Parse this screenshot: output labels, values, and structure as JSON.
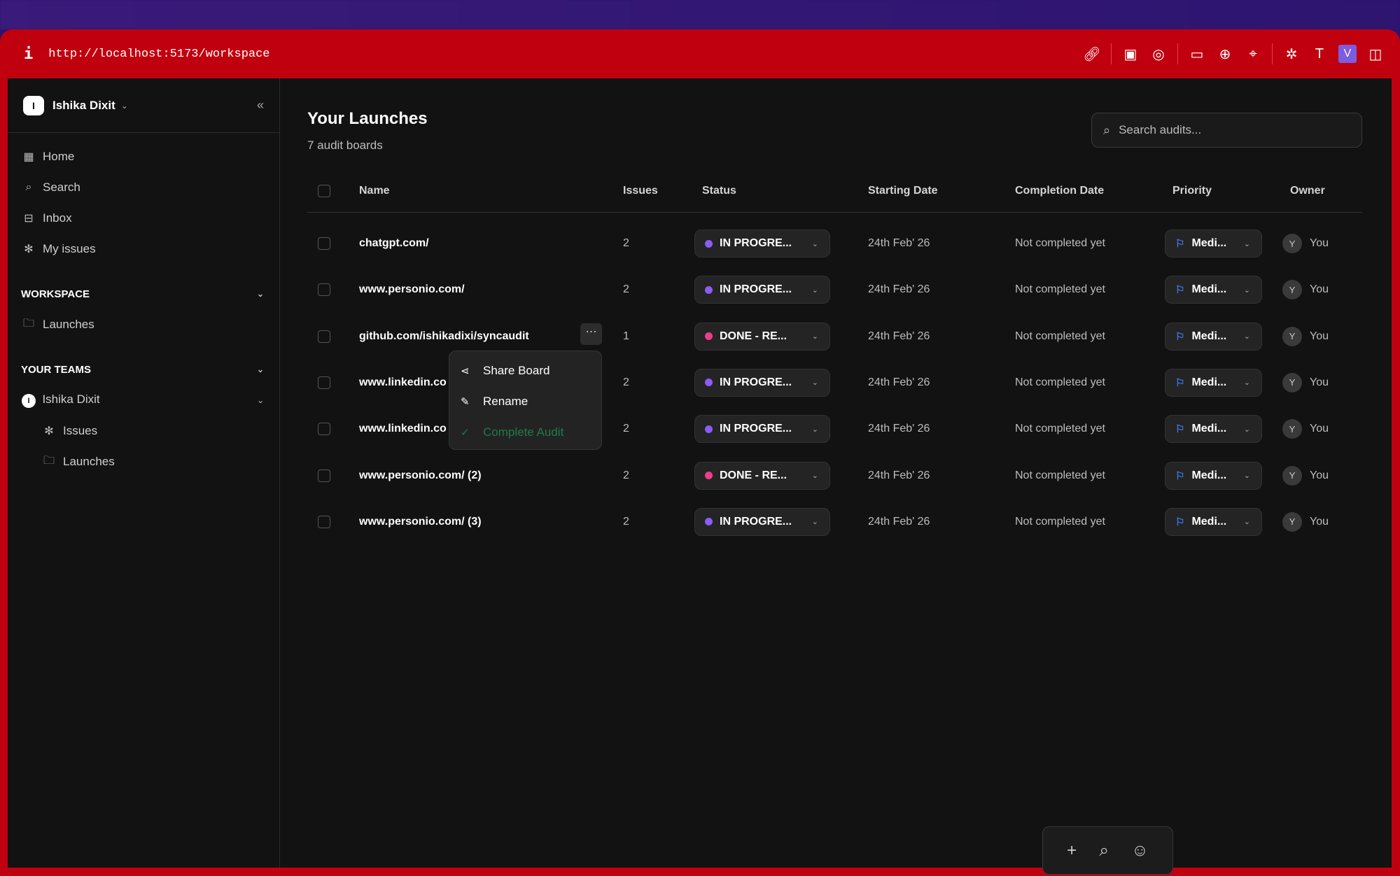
{
  "browser": {
    "url": "http://localhost:5173/workspace",
    "info_icon": "i"
  },
  "sidebar": {
    "workspace_name": "Ishika Dixit",
    "workspace_initial": "I",
    "nav": [
      {
        "label": "Home",
        "icon": "grid-icon"
      },
      {
        "label": "Search",
        "icon": "search-icon"
      },
      {
        "label": "Inbox",
        "icon": "inbox-icon"
      },
      {
        "label": "My issues",
        "icon": "bug-icon"
      }
    ],
    "workspace_section": "WORKSPACE",
    "workspace_items": [
      {
        "label": "Launches"
      }
    ],
    "teams_section": "YOUR TEAMS",
    "team": {
      "name": "Ishika Dixit",
      "initial": "I",
      "items": [
        {
          "label": "Issues"
        },
        {
          "label": "Launches"
        }
      ]
    }
  },
  "main": {
    "title": "Your Launches",
    "subtitle": "7 audit boards",
    "search_placeholder": "Search audits...",
    "columns": [
      "Name",
      "Issues",
      "Status",
      "Starting Date",
      "Completion Date",
      "Priority",
      "Owner"
    ],
    "rows": [
      {
        "name": "chatgpt.com/",
        "issues": "2",
        "status": "IN PROGRE...",
        "status_color": "#8b5cf6",
        "start": "24th Feb' 26",
        "completion": "Not completed yet",
        "priority": "Medi...",
        "owner_initial": "Y",
        "owner": "You"
      },
      {
        "name": "www.personio.com/",
        "issues": "2",
        "status": "IN PROGRE...",
        "status_color": "#8b5cf6",
        "start": "24th Feb' 26",
        "completion": "Not completed yet",
        "priority": "Medi...",
        "owner_initial": "Y",
        "owner": "You"
      },
      {
        "name": "github.com/ishikadixi/syncaudit",
        "issues": "1",
        "status": "DONE - RE...",
        "status_color": "#ec3d8c",
        "start": "24th Feb' 26",
        "completion": "Not completed yet",
        "priority": "Medi...",
        "owner_initial": "Y",
        "owner": "You"
      },
      {
        "name": "www.linkedin.co",
        "issues": "2",
        "status": "IN PROGRE...",
        "status_color": "#8b5cf6",
        "start": "24th Feb' 26",
        "completion": "Not completed yet",
        "priority": "Medi...",
        "owner_initial": "Y",
        "owner": "You"
      },
      {
        "name": "www.linkedin.co",
        "issues": "2",
        "status": "IN PROGRE...",
        "status_color": "#8b5cf6",
        "start": "24th Feb' 26",
        "completion": "Not completed yet",
        "priority": "Medi...",
        "owner_initial": "Y",
        "owner": "You"
      },
      {
        "name": "www.personio.com/ (2)",
        "issues": "2",
        "status": "DONE - RE...",
        "status_color": "#ec3d8c",
        "start": "24th Feb' 26",
        "completion": "Not completed yet",
        "priority": "Medi...",
        "owner_initial": "Y",
        "owner": "You"
      },
      {
        "name": "www.personio.com/ (3)",
        "issues": "2",
        "status": "IN PROGRE...",
        "status_color": "#8b5cf6",
        "start": "24th Feb' 26",
        "completion": "Not completed yet",
        "priority": "Medi...",
        "owner_initial": "Y",
        "owner": "You"
      }
    ],
    "context_menu": [
      {
        "label": "Share Board",
        "icon": "share-icon"
      },
      {
        "label": "Rename",
        "icon": "pencil-icon"
      },
      {
        "label": "Complete Audit",
        "icon": "check-circle-icon",
        "color": "#1f7a4f"
      }
    ]
  },
  "dock": [
    {
      "icon": "plus-icon"
    },
    {
      "icon": "search-icon"
    },
    {
      "icon": "user-icon"
    }
  ]
}
